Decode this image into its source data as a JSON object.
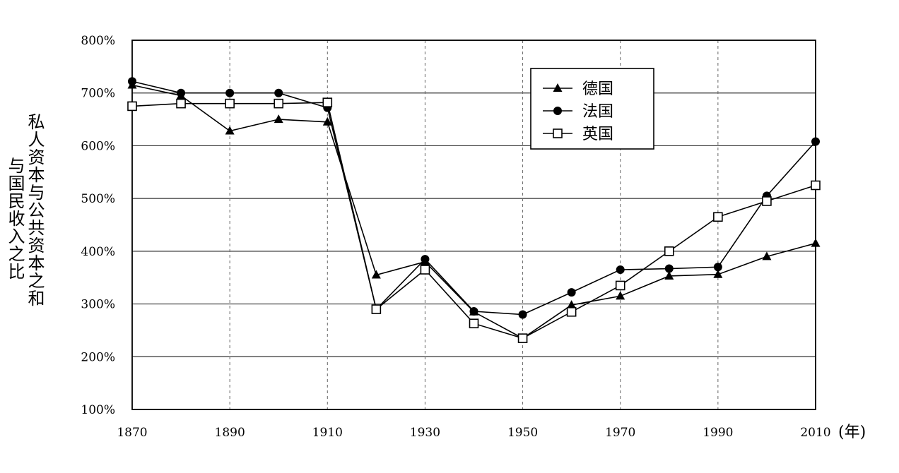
{
  "chart_data": {
    "type": "line",
    "ylabel_lines": [
      "私人资本与公共资本之和",
      "与国民收入之比"
    ],
    "x_unit_label": "(年)",
    "x_ticks": [
      "1870",
      "1890",
      "1910",
      "1930",
      "1950",
      "1970",
      "1990",
      "2010"
    ],
    "y_ticks": [
      "100%",
      "200%",
      "300%",
      "400%",
      "500%",
      "600%",
      "700%",
      "800%"
    ],
    "xlim": [
      1870,
      2010
    ],
    "ylim": [
      100,
      800
    ],
    "grid": "horizontal solid, vertical dashed",
    "legend_position": "top-right",
    "x": [
      1870,
      1880,
      1890,
      1900,
      1910,
      1920,
      1930,
      1940,
      1950,
      1960,
      1970,
      1980,
      1990,
      2000,
      2010
    ],
    "series": [
      {
        "name": "德国",
        "marker": "triangle",
        "color": "#000000",
        "values": [
          715,
          695,
          628,
          650,
          645,
          355,
          380,
          285,
          235,
          298,
          315,
          353,
          356,
          390,
          415
        ]
      },
      {
        "name": "法国",
        "marker": "circle",
        "color": "#000000",
        "values": [
          722,
          700,
          700,
          700,
          672,
          290,
          385,
          286,
          280,
          322,
          365,
          367,
          370,
          505,
          608
        ]
      },
      {
        "name": "英国",
        "marker": "square-open",
        "color": "#000000",
        "values": [
          675,
          680,
          680,
          680,
          682,
          290,
          365,
          263,
          235,
          285,
          335,
          400,
          465,
          495,
          525
        ]
      }
    ]
  }
}
